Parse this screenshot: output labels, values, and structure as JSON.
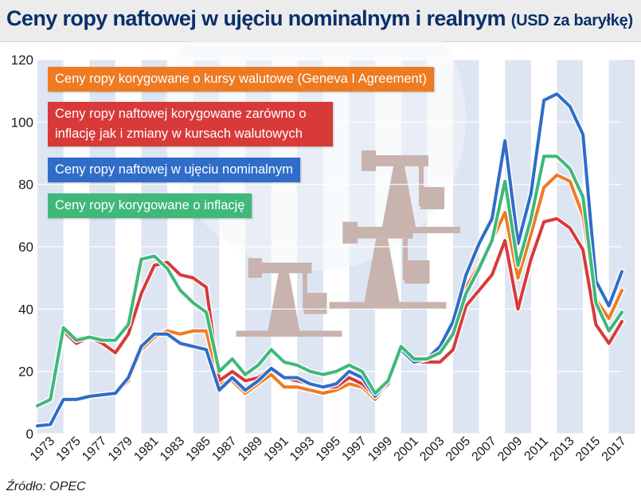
{
  "title": "Ceny ropy naftowej w ujęciu nominalnym i realnym",
  "title_unit": "(USD za baryłkę)",
  "source": "Źródło: OPEC",
  "chart_data": {
    "type": "line",
    "title": "Ceny ropy naftowej w ujęciu nominalnym i realnym (USD za baryłkę)",
    "ylim": [
      0,
      120
    ],
    "yticks": [
      0,
      20,
      40,
      60,
      80,
      100,
      120
    ],
    "x": [
      1972,
      1973,
      1974,
      1975,
      1976,
      1977,
      1978,
      1979,
      1980,
      1981,
      1982,
      1983,
      1984,
      1985,
      1986,
      1987,
      1988,
      1989,
      1990,
      1991,
      1992,
      1993,
      1994,
      1995,
      1996,
      1997,
      1998,
      1999,
      2000,
      2001,
      2002,
      2003,
      2004,
      2005,
      2006,
      2007,
      2008,
      2009,
      2010,
      2011,
      2012,
      2013,
      2014,
      2015,
      2016,
      2017
    ],
    "xtick_labels": [
      "1973",
      "1975",
      "1977",
      "1979",
      "1981",
      "1983",
      "1985",
      "1987",
      "1989",
      "1991",
      "1993",
      "1995",
      "1997",
      "1999",
      "2001",
      "2003",
      "2005",
      "2007",
      "2009",
      "2011",
      "2013",
      "2015",
      "2017"
    ],
    "grid": "alternating vertical bands",
    "legend_placement": "top-left",
    "series": [
      {
        "name": "Ceny ropy korygowane o kursy walutowe (Geneva I Agreement)",
        "color": "#ee7a22",
        "values": [
          2.5,
          3,
          11,
          11,
          12,
          12.5,
          13,
          17,
          27,
          31,
          33,
          32,
          33,
          33,
          16,
          17,
          13,
          16,
          19,
          15,
          15,
          14,
          13,
          14,
          16,
          15,
          11,
          16,
          26,
          24,
          24,
          27,
          36,
          47,
          54,
          62,
          71,
          50,
          64,
          79,
          83,
          81,
          70,
          43,
          37,
          46
        ]
      },
      {
        "name": "Ceny ropy naftowej korygowane zarówno o inflację jak i zmiany w kursach walutowych",
        "color": "#d83a3a",
        "values": [
          9,
          11,
          33,
          29,
          31,
          29,
          26,
          32,
          45,
          54,
          55,
          51,
          50,
          47,
          17,
          20,
          17,
          18,
          21,
          18,
          17,
          16,
          15,
          15,
          18,
          16,
          12,
          16,
          27,
          23,
          23,
          23,
          27,
          41,
          46,
          51,
          62,
          40,
          56,
          68,
          69,
          66,
          59,
          35,
          29,
          36
        ]
      },
      {
        "name": "Ceny ropy naftowej w ujęciu nominalnym",
        "color": "#2f6dc9",
        "values": [
          2.5,
          3,
          11,
          11,
          12,
          12.5,
          13,
          18,
          28,
          32,
          32,
          29,
          28,
          27,
          14,
          18,
          14,
          17,
          21,
          18,
          18,
          16,
          15,
          16,
          20,
          18,
          12,
          17,
          27,
          23,
          24,
          28,
          36,
          51,
          61,
          69,
          94,
          61,
          77,
          107,
          109,
          105,
          96,
          49,
          41,
          52
        ]
      },
      {
        "name": "Ceny ropy korygowane o inflację",
        "color": "#3fb87a",
        "values": [
          9,
          11,
          34,
          30,
          31,
          30,
          30,
          35,
          56,
          57,
          53,
          46,
          42,
          39,
          20,
          24,
          19,
          22,
          27,
          23,
          22,
          20,
          19,
          20,
          22,
          20,
          13,
          17,
          28,
          24,
          24,
          26,
          32,
          45,
          53,
          62,
          81,
          54,
          69,
          89,
          89,
          85,
          76,
          42,
          33,
          39
        ]
      }
    ]
  }
}
